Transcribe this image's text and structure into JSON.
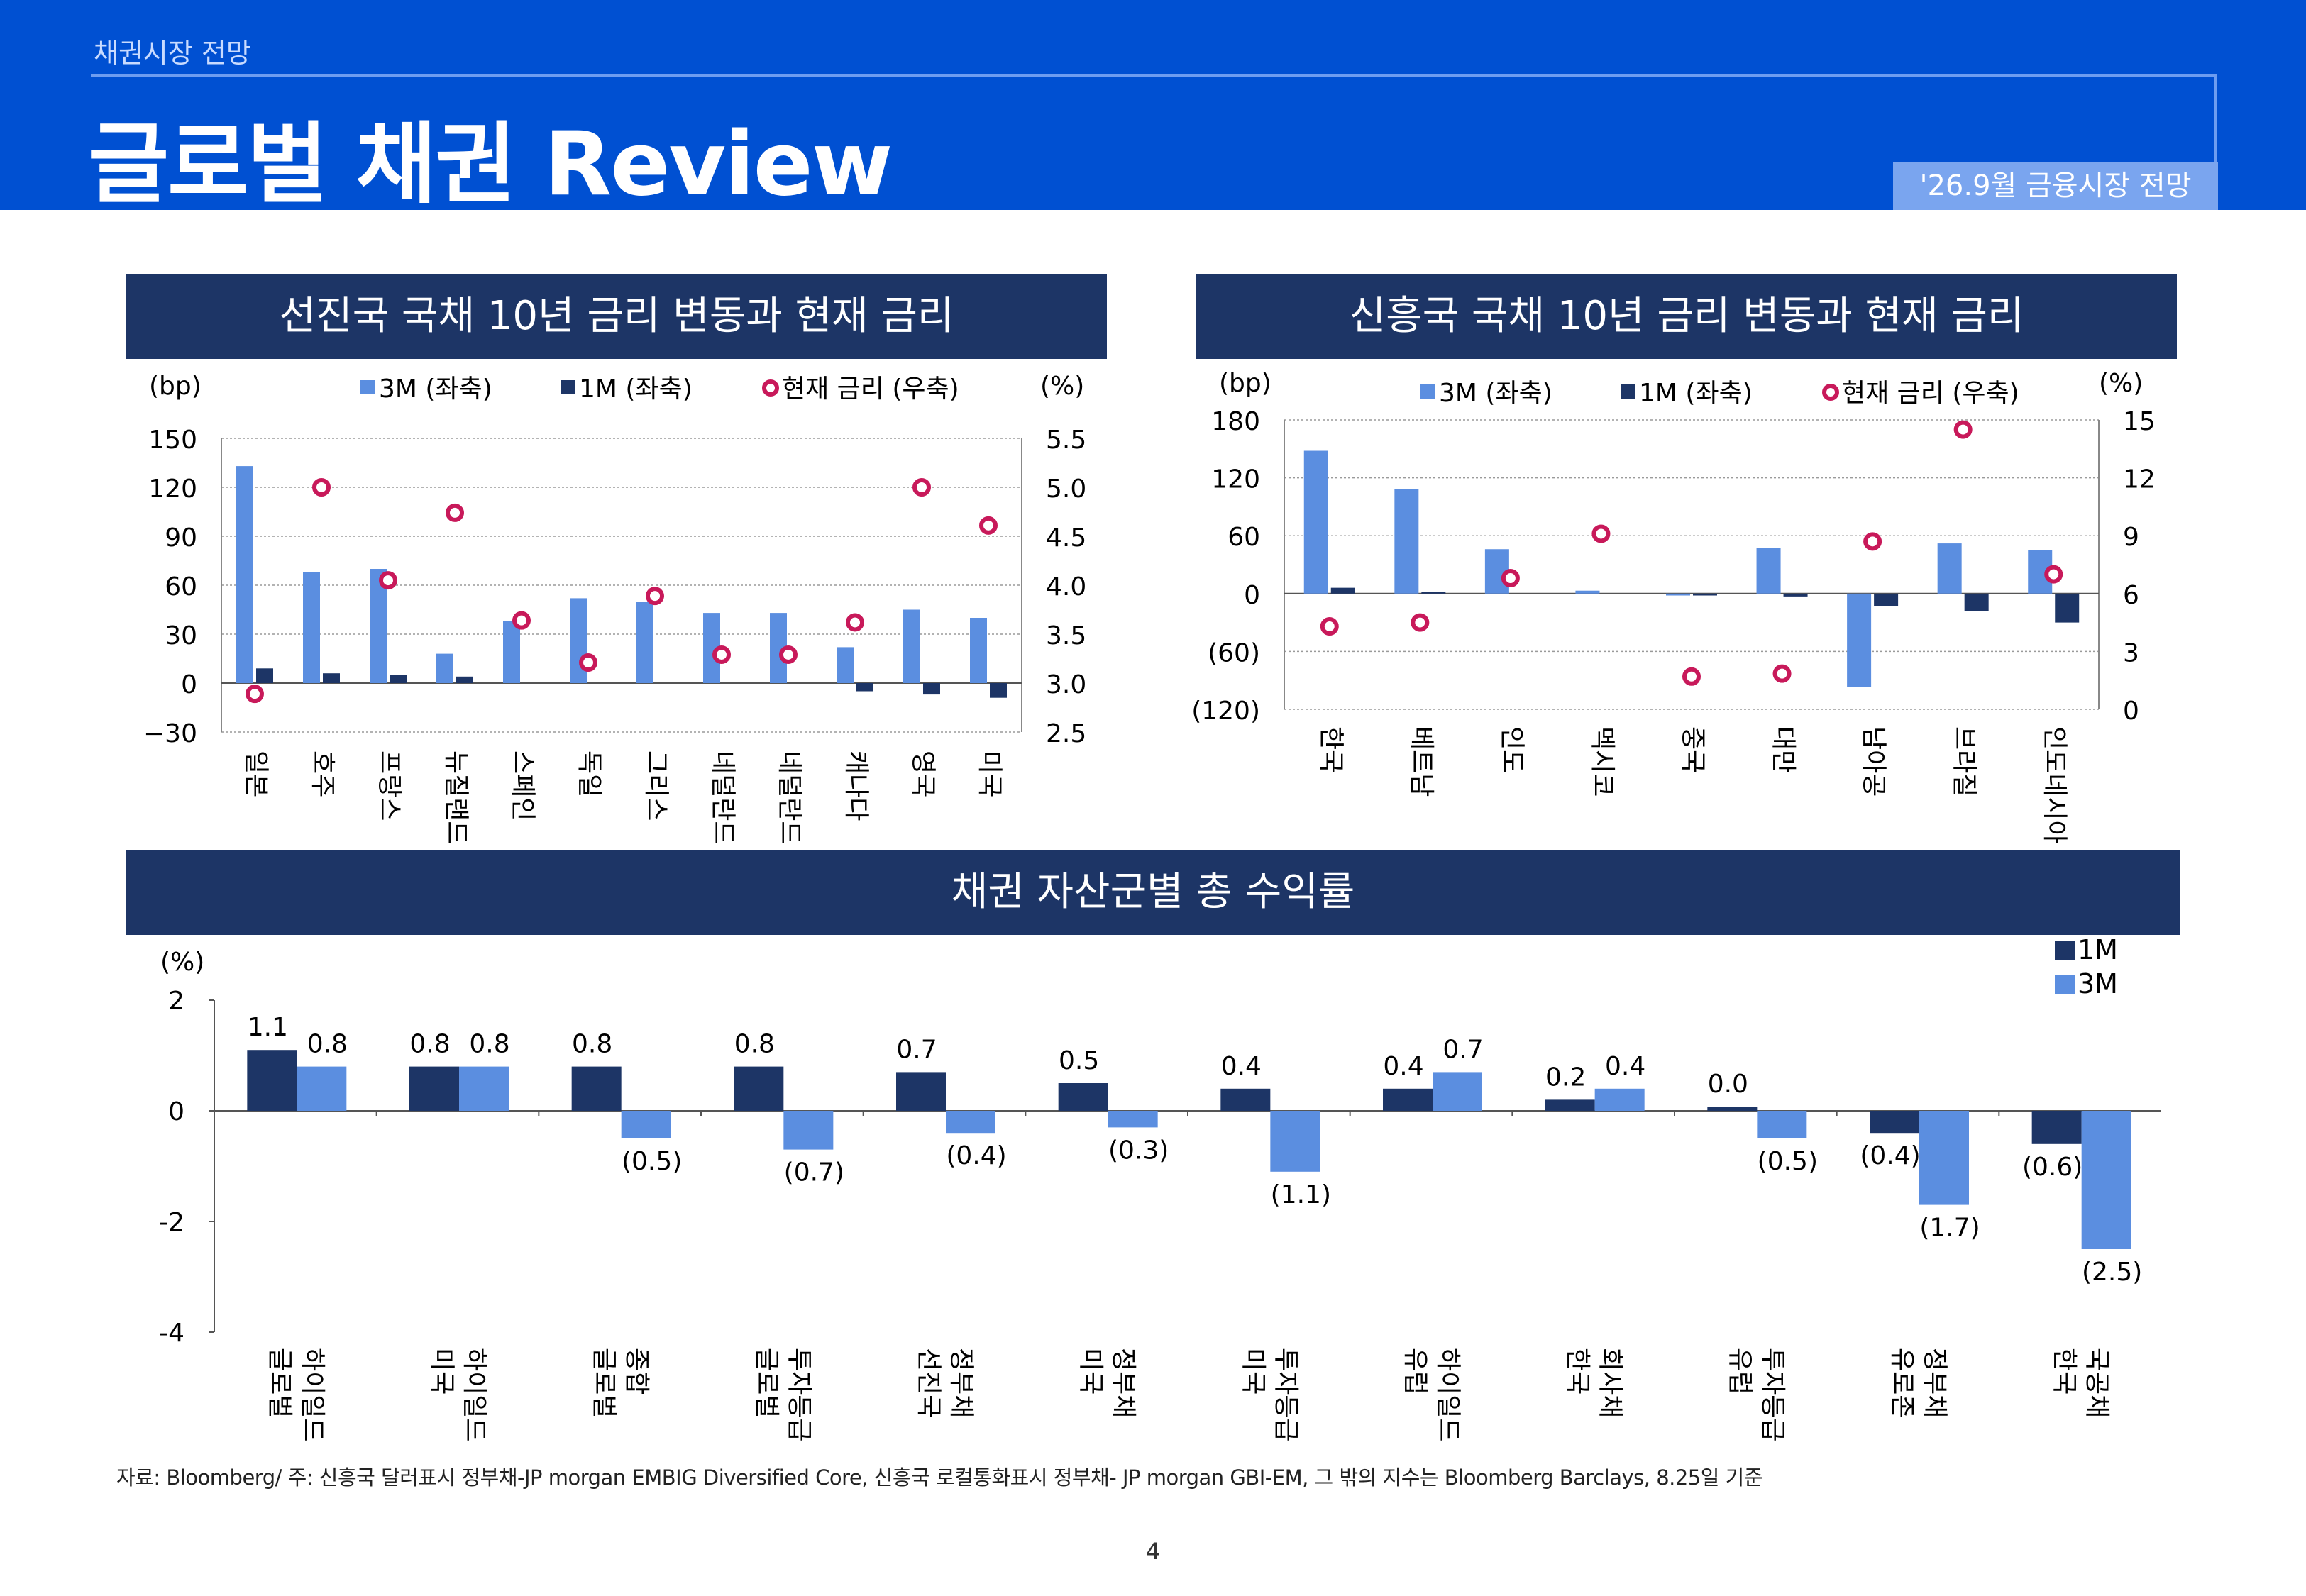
{
  "header": {
    "section": "채권시장 전망",
    "title": "글로벌 채권 Review",
    "badge": "'26.9월 금융시장 전망",
    "bg_color": "#0050d2"
  },
  "colors": {
    "bar_3m": "#5b8ee0",
    "bar_1m": "#1d3566",
    "marker": "#c8195a",
    "panel_title_bg": "#1d3566"
  },
  "chart_data": [
    {
      "type": "bar",
      "title": "선진국 국채 10년 금리 변동과 현재 금리",
      "left_unit": "(bp)",
      "right_unit": "(%)",
      "categories": [
        "일본",
        "호주",
        "프랑스",
        "뉴질랜드",
        "스페인",
        "독일",
        "그리스",
        "네덜란드",
        "네덜란드",
        "캐나다",
        "영국",
        "미국"
      ],
      "series": [
        {
          "name": "3M (좌축)",
          "axis": "left",
          "kind": "bar",
          "values": [
            133,
            68,
            70,
            18,
            38,
            52,
            50,
            43,
            43,
            22,
            45,
            40
          ]
        },
        {
          "name": "1M (좌축)",
          "axis": "left",
          "kind": "bar",
          "values": [
            9,
            6,
            5,
            4,
            0,
            0,
            0,
            0,
            0,
            -5,
            -7,
            -9
          ]
        },
        {
          "name": "현재 금리 (우축)",
          "axis": "right",
          "kind": "marker",
          "values": [
            2.89,
            5.0,
            4.05,
            4.74,
            3.64,
            3.21,
            3.89,
            3.29,
            3.29,
            3.62,
            5.0,
            4.61
          ]
        }
      ],
      "left_ylim": [
        -30,
        150
      ],
      "left_ticks": [
        "150",
        "120",
        "90",
        "60",
        "30",
        "0",
        "−30"
      ],
      "right_ylim": [
        2.5,
        5.5
      ],
      "right_ticks": [
        "5.5",
        "5.0",
        "4.5",
        "4.0",
        "3.5",
        "3.0",
        "2.5"
      ],
      "grid": true,
      "legend": "top"
    },
    {
      "type": "bar",
      "title": "신흥국 국채 10년 금리 변동과 현재 금리",
      "left_unit": "(bp)",
      "right_unit": "(%)",
      "categories": [
        "한국",
        "베트남",
        "인도",
        "멕시코",
        "중국",
        "대만",
        "남아공",
        "브라질",
        "인도네시아"
      ],
      "series": [
        {
          "name": "3M (좌축)",
          "axis": "left",
          "kind": "bar",
          "values": [
            148,
            108,
            46,
            3,
            -2,
            47,
            -97,
            52,
            45
          ]
        },
        {
          "name": "1M (좌축)",
          "axis": "left",
          "kind": "bar",
          "values": [
            6,
            2,
            0,
            0,
            -2,
            -3,
            -13,
            -18,
            -30
          ]
        },
        {
          "name": "현재 금리 (우축)",
          "axis": "right",
          "kind": "marker",
          "values": [
            4.3,
            4.5,
            6.8,
            9.1,
            1.7,
            1.85,
            8.7,
            14.5,
            7.0
          ]
        }
      ],
      "left_ylim": [
        -120,
        180
      ],
      "left_ticks": [
        "180",
        "120",
        "60",
        "0",
        "(60)",
        "(120)"
      ],
      "right_ylim": [
        0,
        15
      ],
      "right_ticks": [
        "15",
        "12",
        "9",
        "6",
        "3",
        "0"
      ],
      "grid": true,
      "legend": "top"
    },
    {
      "type": "bar",
      "title": "채권 자산군별 총 수익률",
      "left_unit": "(%)",
      "categories": [
        [
          "글로벌",
          "하이일드"
        ],
        [
          "미국",
          "하이일드"
        ],
        [
          "글로벌",
          "종합"
        ],
        [
          "글로벌",
          "투자등급"
        ],
        [
          "선진국",
          "정부채"
        ],
        [
          "미국",
          "정부채"
        ],
        [
          "미국",
          "투자등급"
        ],
        [
          "유럽",
          "하이일드"
        ],
        [
          "한국",
          "회사채"
        ],
        [
          "유럽",
          "투자등급"
        ],
        [
          "유로존",
          "정부채"
        ],
        [
          "한국",
          "국공채"
        ]
      ],
      "series": [
        {
          "name": "1M",
          "values": [
            1.1,
            0.8,
            0.8,
            0.8,
            0.7,
            0.5,
            0.4,
            0.4,
            0.2,
            0.0,
            -0.4,
            -0.6
          ],
          "labels": [
            "1.1",
            "0.8",
            "0.8",
            "0.8",
            "0.7",
            "0.5",
            "0.4",
            "0.4",
            "0.2",
            "0.0",
            "(0.4)",
            "(0.6)"
          ]
        },
        {
          "name": "3M",
          "values": [
            0.8,
            0.8,
            -0.5,
            -0.7,
            -0.4,
            -0.3,
            -1.1,
            0.7,
            0.4,
            -0.5,
            -1.7,
            -2.5
          ],
          "labels": [
            "0.8",
            "0.8",
            "(0.5)",
            "(0.7)",
            "(0.4)",
            "(0.3)",
            "(1.1)",
            "0.7",
            "0.4",
            "(0.5)",
            "(1.7)",
            "(2.5)"
          ]
        }
      ],
      "ylim": [
        -4,
        2
      ],
      "y_ticks": [
        "2",
        "0",
        "-2",
        "-4"
      ],
      "grid": false,
      "legend": "top-right"
    }
  ],
  "footnote": "자료: Bloomberg/ 주: 신흥국 달러표시 정부채-JP morgan EMBIG Diversified Core, 신흥국 로컬통화표시 정부채- JP morgan GBI-EM, 그 밖의 지수는 Bloomberg Barclays, 8.25일 기준",
  "page_number": "4"
}
